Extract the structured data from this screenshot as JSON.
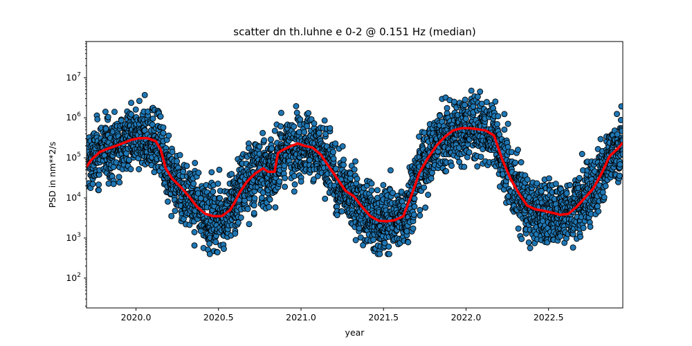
{
  "chart_data": {
    "type": "scatter",
    "title": "scatter dn th.luhne e 0-2 @ 0.151 Hz (median)",
    "xlabel": "year",
    "ylabel": "PSD in nm**2/s",
    "xlim": [
      2019.7,
      2022.95
    ],
    "ylim": [
      18,
      80000000
    ],
    "yscale": "log",
    "grid": false,
    "x_ticks": [
      2020.0,
      2020.5,
      2021.0,
      2021.5,
      2022.0,
      2022.5
    ],
    "x_tick_labels": [
      "2020.0",
      "2020.5",
      "2021.0",
      "2021.5",
      "2022.0",
      "2022.5"
    ],
    "y_ticks": [
      100,
      1000,
      10000,
      100000,
      1000000,
      10000000
    ],
    "y_tick_labels": [
      "10^2",
      "10^3",
      "10^4",
      "10^5",
      "10^6",
      "10^7"
    ],
    "scatter_color": "#1f77b4",
    "scatter_edge": "#000000",
    "median_color": "#ff0000",
    "median": {
      "x": [
        2019.7,
        2019.73,
        2019.78,
        2019.83,
        2019.88,
        2019.93,
        2019.97,
        2020.02,
        2020.07,
        2020.12,
        2020.15,
        2020.18,
        2020.22,
        2020.27,
        2020.32,
        2020.37,
        2020.42,
        2020.47,
        2020.52,
        2020.57,
        2020.6,
        2020.63,
        2020.67,
        2020.72,
        2020.77,
        2020.8,
        2020.84,
        2020.86,
        2020.88,
        2020.93,
        2020.98,
        2021.02,
        2021.07,
        2021.12,
        2021.17,
        2021.22,
        2021.27,
        2021.32,
        2021.37,
        2021.42,
        2021.47,
        2021.52,
        2021.57,
        2021.62,
        2021.67,
        2021.72,
        2021.77,
        2021.82,
        2021.87,
        2021.92,
        2021.97,
        2022.02,
        2022.07,
        2022.12,
        2022.17,
        2022.22,
        2022.27,
        2022.32,
        2022.37,
        2022.42,
        2022.47,
        2022.52,
        2022.57,
        2022.62,
        2022.67,
        2022.72,
        2022.77,
        2022.82,
        2022.87,
        2022.92,
        2022.95
      ],
      "y": [
        60000,
        90000,
        140000,
        170000,
        200000,
        240000,
        280000,
        310000,
        310000,
        260000,
        160000,
        55000,
        30000,
        19000,
        11000,
        6000,
        4000,
        3500,
        3500,
        5000,
        8000,
        14000,
        25000,
        40000,
        55000,
        45000,
        45000,
        130000,
        150000,
        190000,
        230000,
        200000,
        180000,
        120000,
        60000,
        30000,
        15000,
        11000,
        6000,
        3500,
        2700,
        2600,
        2800,
        3500,
        12000,
        45000,
        100000,
        200000,
        330000,
        480000,
        550000,
        550000,
        520000,
        480000,
        360000,
        90000,
        30000,
        13000,
        6500,
        5200,
        4800,
        4300,
        3800,
        4000,
        6000,
        10000,
        17000,
        40000,
        110000,
        170000,
        240000
      ]
    },
    "scatter_series_note": ""
  }
}
